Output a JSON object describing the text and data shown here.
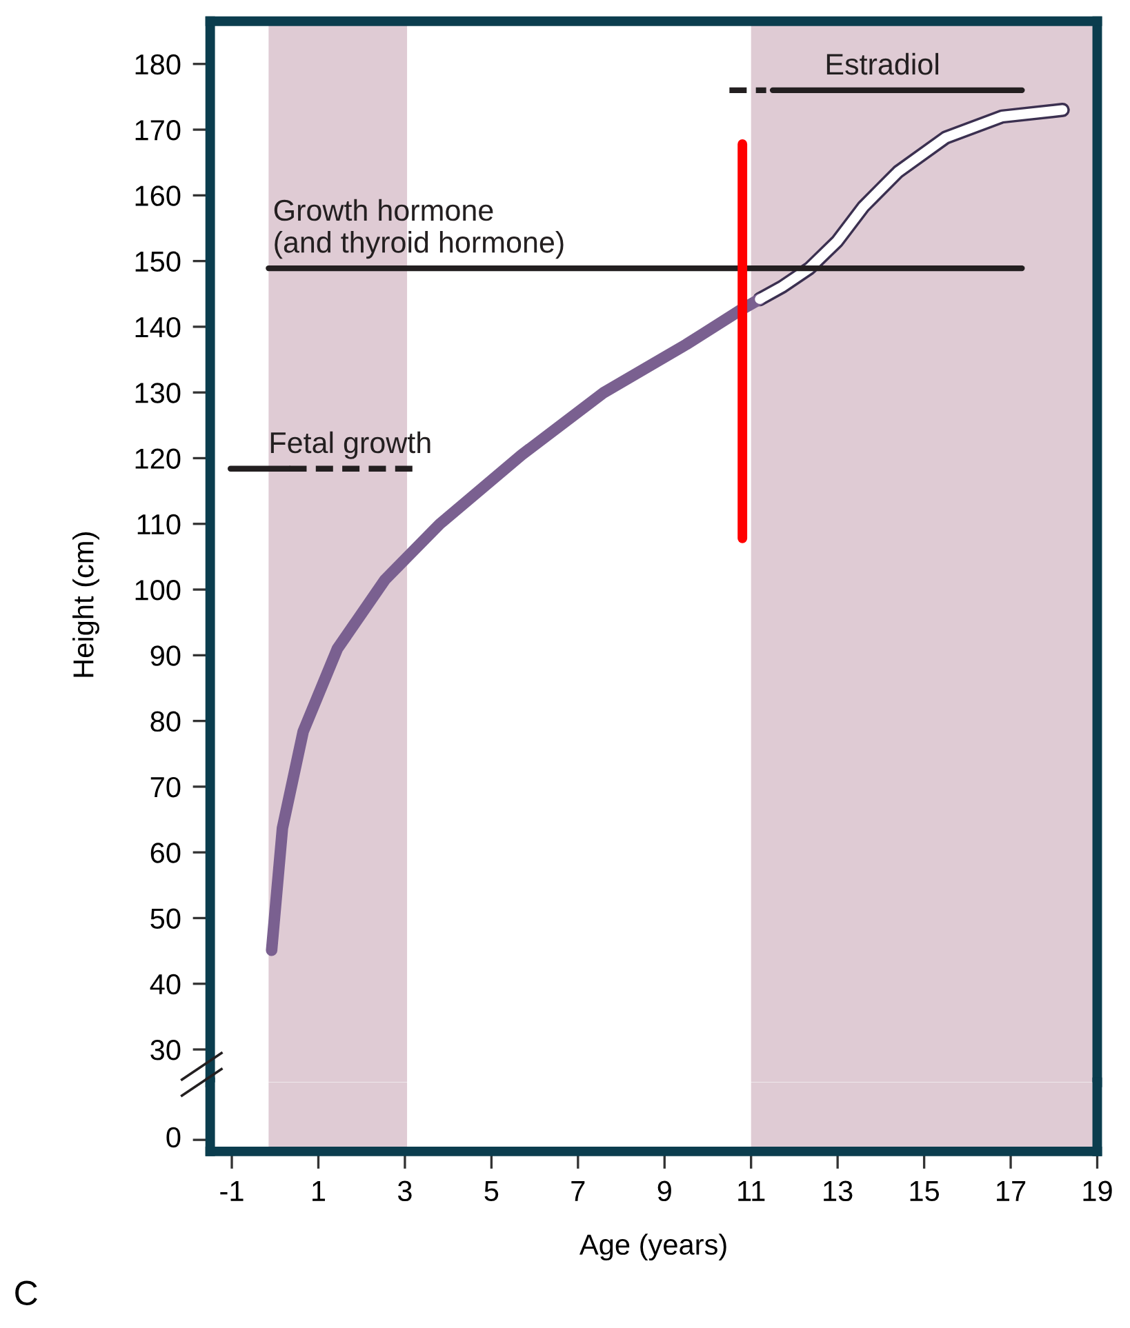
{
  "chart_data": {
    "type": "line",
    "ylabel": "Height (cm)",
    "xlabel": "Age (years)",
    "xlim": [
      -1.5,
      19
    ],
    "ylim": [
      25,
      186.5
    ],
    "yticks": [
      30,
      40,
      50,
      60,
      70,
      80,
      90,
      100,
      110,
      120,
      130,
      140,
      150,
      160,
      170,
      180
    ],
    "xticks": [
      -1,
      1,
      3,
      5,
      7,
      9,
      11,
      13,
      15,
      17,
      19
    ],
    "grid": false,
    "bands": [
      {
        "axis": "x",
        "from": -0.15,
        "to": 3.05,
        "color": "#dfcbd4"
      },
      {
        "axis": "x",
        "from": 11.0,
        "to": 19,
        "color": "#dfcbd4"
      }
    ],
    "series": [
      {
        "color": "#7a6090",
        "x": [
          -0.08,
          0.17,
          0.65,
          1.44,
          2.54,
          3.81,
          5.7,
          7.6,
          9.5,
          10.77,
          11.2
        ],
        "values": [
          45.1,
          63.7,
          78.4,
          91,
          101.5,
          110,
          120.5,
          130,
          137.3,
          142.6,
          144.2
        ]
      },
      {
        "color": "#ffffff",
        "x": [
          11.2,
          11.72,
          12.35,
          12.99,
          13.6,
          14.4,
          15.5,
          16.8,
          18.2
        ],
        "values": [
          144.2,
          146.1,
          148.9,
          153,
          158.3,
          163.6,
          168.8,
          172,
          173
        ]
      },
      {
        "color": "#231f20",
        "line_style": "solid",
        "x": [
          -0.15,
          17.26
        ],
        "values": [
          148.9,
          148.9
        ]
      },
      {
        "color": "#231f20",
        "line_style": "solid",
        "x": [
          11.5,
          17.26
        ],
        "values": [
          176,
          176
        ]
      },
      {
        "color": "#231f20",
        "line_style": "dashed",
        "x": [
          10.5,
          11.35
        ],
        "values": [
          176,
          176
        ]
      },
      {
        "color": "#231f20",
        "line_style": "solid",
        "x": [
          -1.03,
          0.33
        ],
        "values": [
          118.4,
          118.4
        ]
      },
      {
        "color": "#231f20",
        "line_style": "dashed",
        "x": [
          0.33,
          3.34
        ],
        "values": [
          118.4,
          118.4
        ]
      },
      {
        "color": "#ff0000",
        "x": [
          10.8,
          10.8
        ],
        "values": [
          107.8,
          167.8
        ]
      }
    ],
    "annotations": [
      {
        "text": "Estradiol",
        "x": 12.7,
        "y": 176
      },
      {
        "text": "Growth hormone\n(and thyroid hormone)",
        "x": -0.05,
        "y": 148.9
      },
      {
        "text": "Fetal growth",
        "x": -0.15,
        "y": 118.4
      },
      "0",
      "C"
    ]
  }
}
